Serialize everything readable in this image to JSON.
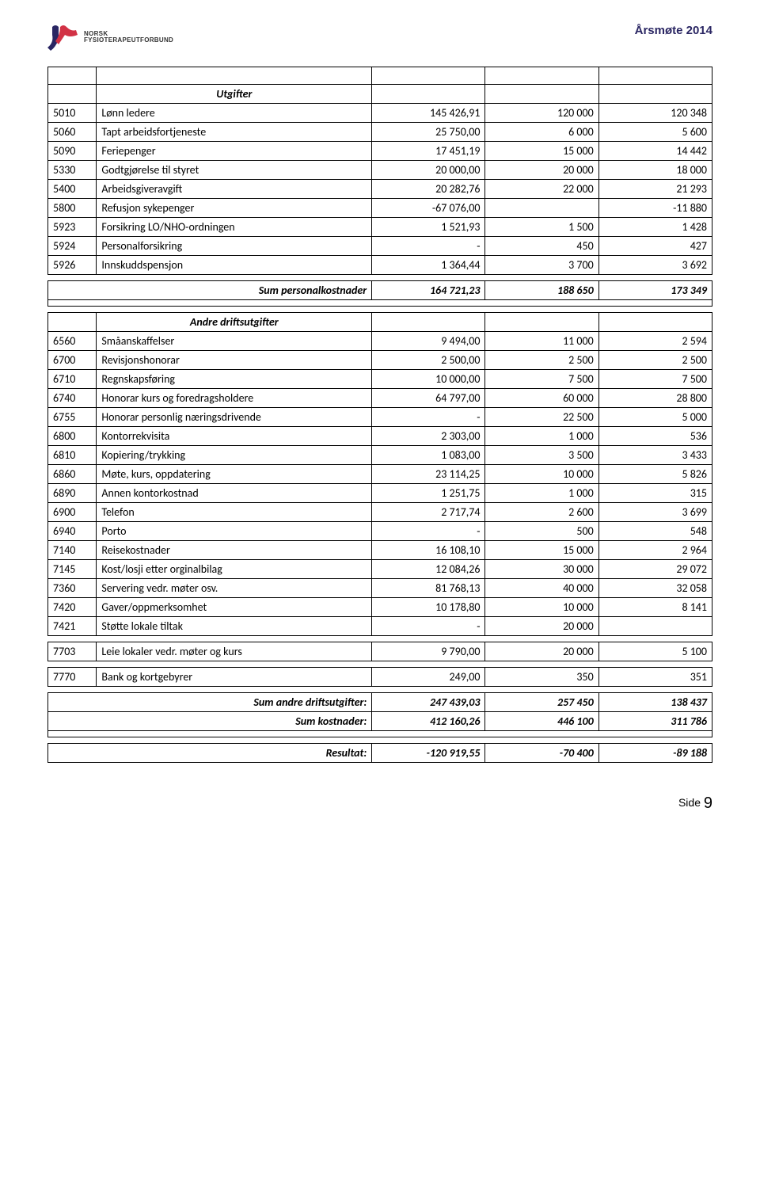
{
  "header": {
    "title": "Årsmøte 2014",
    "header_color": "#2a2663"
  },
  "logo": {
    "line1": "NORSK",
    "line2": "FYSIOTERAPEUTFORBUND"
  },
  "sections": {
    "utgifter": {
      "title": "Utgifter",
      "rows": [
        {
          "code": "5010",
          "desc": "Lønn ledere",
          "c1": "145 426,91",
          "c2": "120 000",
          "c3": "120 348"
        },
        {
          "code": "5060",
          "desc": "Tapt arbeidsfortjeneste",
          "c1": "25 750,00",
          "c2": "6 000",
          "c3": "5 600"
        },
        {
          "code": "5090",
          "desc": "Feriepenger",
          "c1": "17 451,19",
          "c2": "15 000",
          "c3": "14 442"
        },
        {
          "code": "5330",
          "desc": "Godtgjørelse til styret",
          "c1": "20 000,00",
          "c2": "20 000",
          "c3": "18 000"
        },
        {
          "code": "5400",
          "desc": "Arbeidsgiveravgift",
          "c1": "20 282,76",
          "c2": "22 000",
          "c3": "21 293"
        },
        {
          "code": "5800",
          "desc": "Refusjon sykepenger",
          "c1": "-67 076,00",
          "c2": "",
          "c3": "-11 880"
        },
        {
          "code": "5923",
          "desc": "Forsikring LO/NHO-ordningen",
          "c1": "1 521,93",
          "c2": "1 500",
          "c3": "1 428"
        },
        {
          "code": "5924",
          "desc": "Personalforsikring",
          "c1": "-",
          "c2": "450",
          "c3": "427"
        },
        {
          "code": "5926",
          "desc": "Innskuddspensjon",
          "c1": "1 364,44",
          "c2": "3 700",
          "c3": "3 692"
        }
      ],
      "sum": {
        "label": "Sum personalkostnader",
        "c1": "164 721,23",
        "c2": "188 650",
        "c3": "173 349"
      }
    },
    "andre": {
      "title": "Andre driftsutgifter",
      "rows": [
        {
          "code": "6560",
          "desc": "Småanskaffelser",
          "c1": "9 494,00",
          "c2": "11 000",
          "c3": "2 594"
        },
        {
          "code": "6700",
          "desc": "Revisjonshonorar",
          "c1": "2 500,00",
          "c2": "2 500",
          "c3": "2 500"
        },
        {
          "code": "6710",
          "desc": "Regnskapsføring",
          "c1": "10 000,00",
          "c2": "7 500",
          "c3": "7 500"
        },
        {
          "code": "6740",
          "desc": "Honorar kurs og foredragsholdere",
          "c1": "64 797,00",
          "c2": "60 000",
          "c3": "28 800"
        },
        {
          "code": "6755",
          "desc": "Honorar personlig næringsdrivende",
          "c1": "-",
          "c2": "22 500",
          "c3": "5 000"
        },
        {
          "code": "6800",
          "desc": "Kontorrekvisita",
          "c1": "2 303,00",
          "c2": "1 000",
          "c3": "536"
        },
        {
          "code": "6810",
          "desc": "Kopiering/trykking",
          "c1": "1 083,00",
          "c2": "3 500",
          "c3": "3 433"
        },
        {
          "code": "6860",
          "desc": "Møte, kurs, oppdatering",
          "c1": "23 114,25",
          "c2": "10 000",
          "c3": "5 826"
        },
        {
          "code": "6890",
          "desc": "Annen kontorkostnad",
          "c1": "1 251,75",
          "c2": "1 000",
          "c3": "315"
        },
        {
          "code": "6900",
          "desc": "Telefon",
          "c1": "2 717,74",
          "c2": "2 600",
          "c3": "3 699"
        },
        {
          "code": "6940",
          "desc": "Porto",
          "c1": "-",
          "c2": "500",
          "c3": "548"
        },
        {
          "code": "7140",
          "desc": "Reisekostnader",
          "c1": "16 108,10",
          "c2": "15 000",
          "c3": "2 964"
        },
        {
          "code": "7145",
          "desc": "Kost/losji etter orginalbilag",
          "c1": "12 084,26",
          "c2": "30 000",
          "c3": "29 072"
        },
        {
          "code": "7360",
          "desc": "Servering vedr. møter osv.",
          "c1": "81 768,13",
          "c2": "40 000",
          "c3": "32 058"
        },
        {
          "code": "7420",
          "desc": "Gaver/oppmerksomhet",
          "c1": "10 178,80",
          "c2": "10 000",
          "c3": "8 141"
        },
        {
          "code": "7421",
          "desc": "Støtte lokale tiltak",
          "c1": "-",
          "c2": "20 000",
          "c3": ""
        },
        {
          "code": "7703",
          "desc": "Leie lokaler vedr. møter og kurs",
          "c1": "9 790,00",
          "c2": "20 000",
          "c3": "5 100"
        },
        {
          "code": "7770",
          "desc": "Bank og kortgebyrer",
          "c1": "249,00",
          "c2": "350",
          "c3": "351"
        }
      ],
      "sum1": {
        "label": "Sum andre driftsutgifter:",
        "c1": "247 439,03",
        "c2": "257 450",
        "c3": "138 437"
      },
      "sum2": {
        "label": "Sum kostnader:",
        "c1": "412 160,26",
        "c2": "446 100",
        "c3": "311 786"
      },
      "result": {
        "label": "Resultat:",
        "c1": "-120 919,55",
        "c2": "-70 400",
        "c3": "-89 188"
      }
    }
  },
  "footer": {
    "side_label": "Side",
    "page": "9"
  }
}
